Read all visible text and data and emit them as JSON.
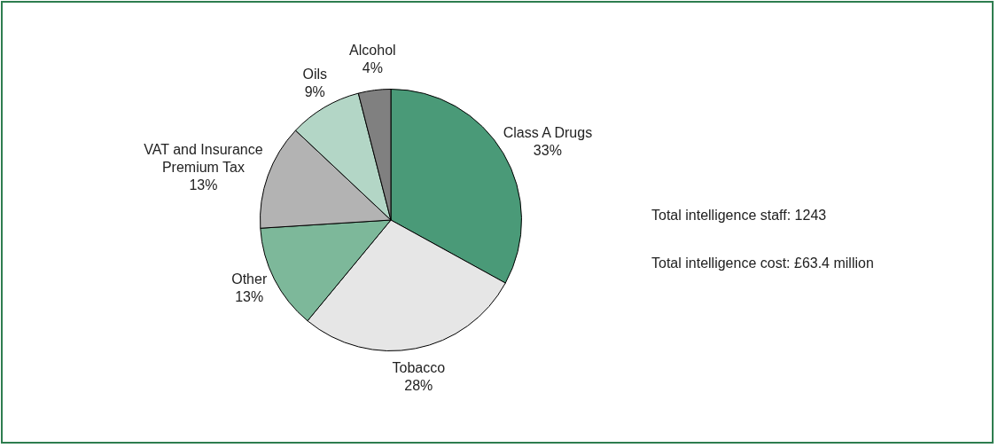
{
  "chart_data": {
    "type": "pie",
    "categories": [
      "Class A Drugs",
      "Tobacco",
      "Other",
      "VAT and Insurance Premium Tax",
      "Oils",
      "Alcohol"
    ],
    "values": [
      33,
      28,
      13,
      13,
      9,
      4
    ],
    "colors": [
      "#4a9a78",
      "#e6e6e6",
      "#7db89a",
      "#b3b3b3",
      "#b3d6c6",
      "#808080"
    ],
    "value_labels": [
      "33%",
      "28%",
      "13%",
      "13%",
      "9%",
      "4%"
    ],
    "legend": false,
    "annotations": [
      "Total intelligence staff: 1243",
      "Total intelligence cost: £63.4 million"
    ]
  }
}
